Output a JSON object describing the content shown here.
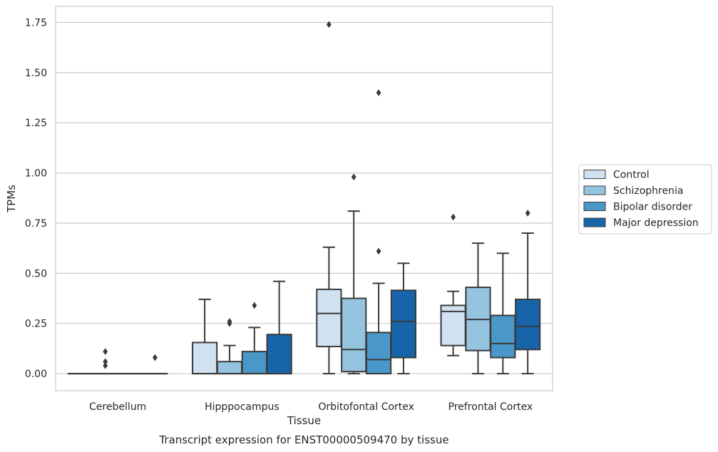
{
  "chart_data": {
    "type": "boxplot",
    "title": "",
    "caption": "Transcript expression for ENST00000509470 by tissue",
    "xlabel": "Tissue",
    "ylabel": "TPMs",
    "ylim": [
      -0.085,
      1.83
    ],
    "yticks": [
      0.0,
      0.25,
      0.5,
      0.75,
      1.0,
      1.25,
      1.5,
      1.75
    ],
    "ytick_labels": [
      "0.00",
      "0.25",
      "0.50",
      "0.75",
      "1.00",
      "1.25",
      "1.50",
      "1.75"
    ],
    "grid": "horizontal",
    "legend_position": "right",
    "categories": [
      "Cerebellum",
      "Hipppocampus",
      "Orbitofontal Cortex",
      "Prefrontal Cortex"
    ],
    "series": [
      {
        "name": "Control",
        "color": "#d0e1f2",
        "boxes": [
          {
            "whislo": 0.0,
            "q1": 0.0,
            "median": 0.0,
            "q3": 0.0,
            "whishi": 0.0,
            "fliers": []
          },
          {
            "whislo": 0.0,
            "q1": 0.0,
            "median": 0.0,
            "q3": 0.155,
            "whishi": 0.37,
            "fliers": []
          },
          {
            "whislo": 0.0,
            "q1": 0.135,
            "median": 0.3,
            "q3": 0.42,
            "whishi": 0.63,
            "fliers": [
              1.74
            ]
          },
          {
            "whislo": 0.09,
            "q1": 0.14,
            "median": 0.31,
            "q3": 0.34,
            "whishi": 0.41,
            "fliers": [
              0.78
            ]
          }
        ]
      },
      {
        "name": "Schizophrenia",
        "color": "#94c4df",
        "boxes": [
          {
            "whislo": 0.0,
            "q1": 0.0,
            "median": 0.0,
            "q3": 0.0,
            "whishi": 0.0,
            "fliers": [
              0.04,
              0.06,
              0.11
            ]
          },
          {
            "whislo": 0.0,
            "q1": 0.0,
            "median": 0.0,
            "q3": 0.06,
            "whishi": 0.14,
            "fliers": [
              0.25,
              0.26
            ]
          },
          {
            "whislo": 0.0,
            "q1": 0.01,
            "median": 0.12,
            "q3": 0.375,
            "whishi": 0.81,
            "fliers": [
              0.98
            ]
          },
          {
            "whislo": 0.0,
            "q1": 0.115,
            "median": 0.27,
            "q3": 0.43,
            "whishi": 0.65,
            "fliers": []
          }
        ]
      },
      {
        "name": "Bipolar disorder",
        "color": "#4a98c9",
        "boxes": [
          {
            "whislo": 0.0,
            "q1": 0.0,
            "median": 0.0,
            "q3": 0.0,
            "whishi": 0.0,
            "fliers": []
          },
          {
            "whislo": 0.0,
            "q1": 0.0,
            "median": 0.0,
            "q3": 0.11,
            "whishi": 0.23,
            "fliers": [
              0.34
            ]
          },
          {
            "whislo": 0.0,
            "q1": 0.0,
            "median": 0.07,
            "q3": 0.205,
            "whishi": 0.45,
            "fliers": [
              0.61,
              1.4
            ]
          },
          {
            "whislo": 0.0,
            "q1": 0.08,
            "median": 0.15,
            "q3": 0.29,
            "whishi": 0.6,
            "fliers": []
          }
        ]
      },
      {
        "name": "Major depression",
        "color": "#1764ab",
        "boxes": [
          {
            "whislo": 0.0,
            "q1": 0.0,
            "median": 0.0,
            "q3": 0.0,
            "whishi": 0.0,
            "fliers": [
              0.08
            ]
          },
          {
            "whislo": 0.0,
            "q1": 0.0,
            "median": 0.0,
            "q3": 0.195,
            "whishi": 0.46,
            "fliers": []
          },
          {
            "whislo": 0.0,
            "q1": 0.08,
            "median": 0.26,
            "q3": 0.415,
            "whishi": 0.55,
            "fliers": []
          },
          {
            "whislo": 0.0,
            "q1": 0.12,
            "median": 0.235,
            "q3": 0.37,
            "whishi": 0.7,
            "fliers": [
              0.8
            ]
          }
        ]
      }
    ]
  }
}
